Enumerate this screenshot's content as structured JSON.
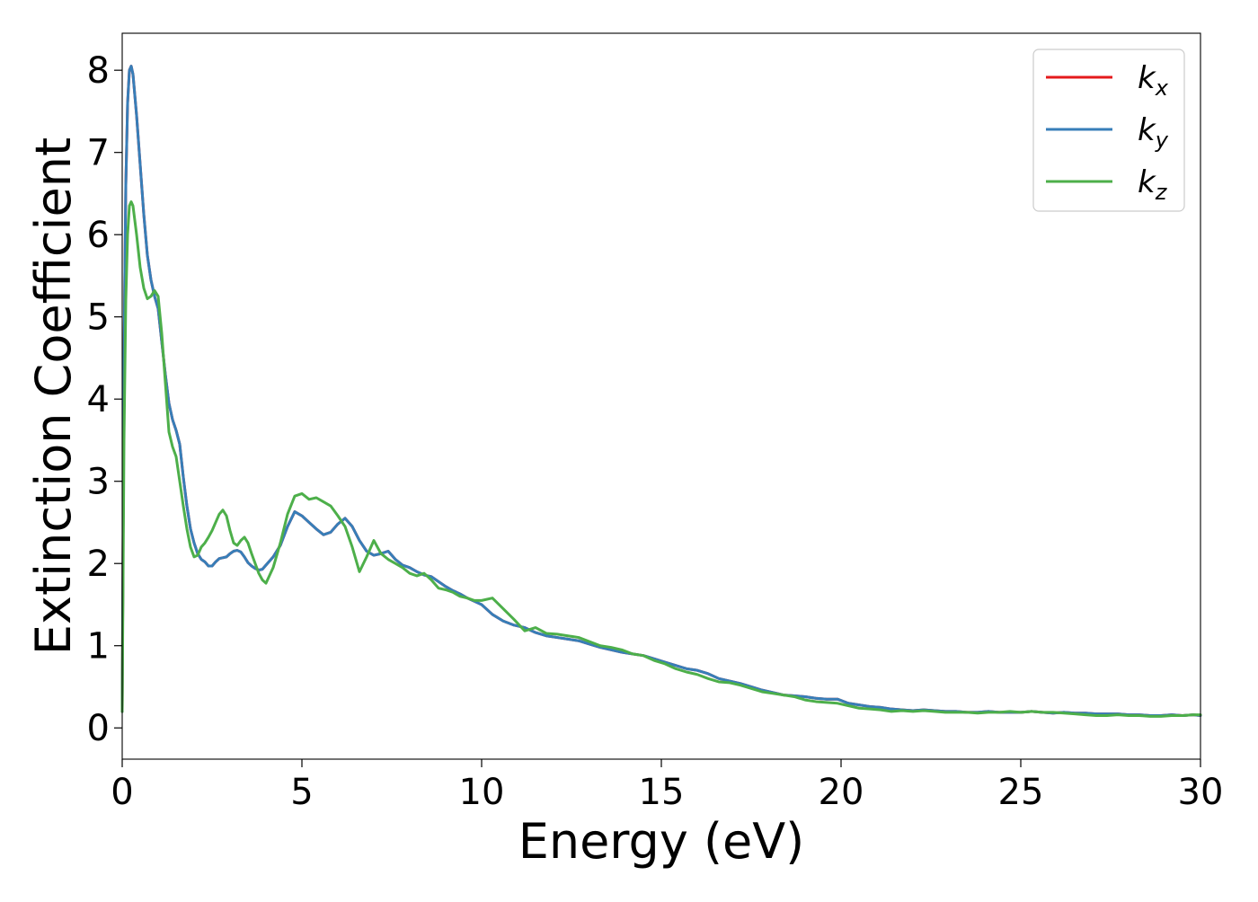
{
  "chart_data": {
    "type": "line",
    "title": "",
    "xlabel": "Energy (eV)",
    "ylabel": "Extinction Coefficient",
    "xlim": [
      0,
      30
    ],
    "ylim": [
      -0.38,
      8.45
    ],
    "xticks": [
      0,
      5,
      10,
      15,
      20,
      25,
      30
    ],
    "yticks": [
      0,
      1,
      2,
      3,
      4,
      5,
      6,
      7,
      8
    ],
    "grid": false,
    "legend_position": "top-right",
    "series": [
      {
        "name": "k_x",
        "legend_base": "k",
        "legend_sub": "x",
        "color": "#e41a1c",
        "x": [
          0,
          0.05,
          0.1,
          0.15,
          0.2,
          0.25,
          0.3,
          0.4,
          0.5,
          0.6,
          0.7,
          0.8,
          0.9,
          1.0,
          1.1,
          1.2,
          1.3,
          1.4,
          1.5,
          1.6,
          1.7,
          1.8,
          1.9,
          2.0,
          2.1,
          2.2,
          2.3,
          2.4,
          2.5,
          2.6,
          2.7,
          2.8,
          2.9,
          3.0,
          3.1,
          3.2,
          3.3,
          3.4,
          3.5,
          3.6,
          3.7,
          3.8,
          3.9,
          4.0,
          4.2,
          4.4,
          4.6,
          4.8,
          5.0,
          5.2,
          5.4,
          5.6,
          5.8,
          6.0,
          6.2,
          6.4,
          6.6,
          6.8,
          7.0,
          7.2,
          7.4,
          7.6,
          7.8,
          8.0,
          8.2,
          8.4,
          8.6,
          8.8,
          9.0,
          9.2,
          9.4,
          9.6,
          9.8,
          10.0,
          10.3,
          10.6,
          10.9,
          11.2,
          11.5,
          11.8,
          12.1,
          12.4,
          12.7,
          13.0,
          13.3,
          13.6,
          13.9,
          14.2,
          14.5,
          14.8,
          15.1,
          15.4,
          15.7,
          16.0,
          16.3,
          16.6,
          16.9,
          17.2,
          17.5,
          17.8,
          18.1,
          18.4,
          18.7,
          19.0,
          19.3,
          19.6,
          19.9,
          20.2,
          20.5,
          20.8,
          21.1,
          21.4,
          21.7,
          22.0,
          22.3,
          22.6,
          22.9,
          23.2,
          23.5,
          23.8,
          24.1,
          24.4,
          24.7,
          25.0,
          25.3,
          25.6,
          25.9,
          26.2,
          26.5,
          26.8,
          27.1,
          27.4,
          27.7,
          28.0,
          28.3,
          28.6,
          28.9,
          29.2,
          29.5,
          29.8,
          30.0
        ],
        "y": [
          0.2,
          4.5,
          6.6,
          7.6,
          8.0,
          8.05,
          7.95,
          7.45,
          6.85,
          6.25,
          5.75,
          5.45,
          5.25,
          5.1,
          4.7,
          4.3,
          3.95,
          3.75,
          3.62,
          3.45,
          3.05,
          2.7,
          2.42,
          2.25,
          2.12,
          2.05,
          2.02,
          1.97,
          1.97,
          2.02,
          2.06,
          2.07,
          2.08,
          2.12,
          2.15,
          2.16,
          2.14,
          2.08,
          2.01,
          1.97,
          1.94,
          1.92,
          1.93,
          1.98,
          2.08,
          2.22,
          2.45,
          2.63,
          2.58,
          2.5,
          2.42,
          2.35,
          2.38,
          2.48,
          2.55,
          2.45,
          2.28,
          2.15,
          2.1,
          2.12,
          2.15,
          2.05,
          1.98,
          1.95,
          1.9,
          1.86,
          1.84,
          1.78,
          1.72,
          1.67,
          1.63,
          1.58,
          1.54,
          1.5,
          1.38,
          1.3,
          1.25,
          1.22,
          1.16,
          1.12,
          1.1,
          1.08,
          1.06,
          1.02,
          0.98,
          0.95,
          0.92,
          0.9,
          0.88,
          0.84,
          0.8,
          0.76,
          0.72,
          0.7,
          0.66,
          0.6,
          0.57,
          0.54,
          0.5,
          0.46,
          0.43,
          0.4,
          0.39,
          0.38,
          0.36,
          0.35,
          0.35,
          0.3,
          0.28,
          0.26,
          0.25,
          0.23,
          0.22,
          0.21,
          0.22,
          0.21,
          0.2,
          0.2,
          0.19,
          0.19,
          0.2,
          0.19,
          0.19,
          0.19,
          0.2,
          0.19,
          0.18,
          0.19,
          0.18,
          0.18,
          0.17,
          0.17,
          0.17,
          0.16,
          0.16,
          0.15,
          0.15,
          0.16,
          0.15,
          0.16,
          0.15
        ]
      },
      {
        "name": "k_y",
        "legend_base": "k",
        "legend_sub": "y",
        "color": "#377eb8",
        "x": [
          0,
          0.05,
          0.1,
          0.15,
          0.2,
          0.25,
          0.3,
          0.4,
          0.5,
          0.6,
          0.7,
          0.8,
          0.9,
          1.0,
          1.1,
          1.2,
          1.3,
          1.4,
          1.5,
          1.6,
          1.7,
          1.8,
          1.9,
          2.0,
          2.1,
          2.2,
          2.3,
          2.4,
          2.5,
          2.6,
          2.7,
          2.8,
          2.9,
          3.0,
          3.1,
          3.2,
          3.3,
          3.4,
          3.5,
          3.6,
          3.7,
          3.8,
          3.9,
          4.0,
          4.2,
          4.4,
          4.6,
          4.8,
          5.0,
          5.2,
          5.4,
          5.6,
          5.8,
          6.0,
          6.2,
          6.4,
          6.6,
          6.8,
          7.0,
          7.2,
          7.4,
          7.6,
          7.8,
          8.0,
          8.2,
          8.4,
          8.6,
          8.8,
          9.0,
          9.2,
          9.4,
          9.6,
          9.8,
          10.0,
          10.3,
          10.6,
          10.9,
          11.2,
          11.5,
          11.8,
          12.1,
          12.4,
          12.7,
          13.0,
          13.3,
          13.6,
          13.9,
          14.2,
          14.5,
          14.8,
          15.1,
          15.4,
          15.7,
          16.0,
          16.3,
          16.6,
          16.9,
          17.2,
          17.5,
          17.8,
          18.1,
          18.4,
          18.7,
          19.0,
          19.3,
          19.6,
          19.9,
          20.2,
          20.5,
          20.8,
          21.1,
          21.4,
          21.7,
          22.0,
          22.3,
          22.6,
          22.9,
          23.2,
          23.5,
          23.8,
          24.1,
          24.4,
          24.7,
          25.0,
          25.3,
          25.6,
          25.9,
          26.2,
          26.5,
          26.8,
          27.1,
          27.4,
          27.7,
          28.0,
          28.3,
          28.6,
          28.9,
          29.2,
          29.5,
          29.8,
          30.0
        ],
        "y": [
          0.2,
          4.5,
          6.6,
          7.6,
          8.0,
          8.05,
          7.95,
          7.45,
          6.85,
          6.25,
          5.75,
          5.45,
          5.25,
          5.1,
          4.7,
          4.3,
          3.95,
          3.75,
          3.62,
          3.45,
          3.05,
          2.7,
          2.42,
          2.25,
          2.12,
          2.05,
          2.02,
          1.97,
          1.97,
          2.02,
          2.06,
          2.07,
          2.08,
          2.12,
          2.15,
          2.16,
          2.14,
          2.08,
          2.01,
          1.97,
          1.94,
          1.92,
          1.93,
          1.98,
          2.08,
          2.22,
          2.45,
          2.63,
          2.58,
          2.5,
          2.42,
          2.35,
          2.38,
          2.48,
          2.55,
          2.45,
          2.28,
          2.15,
          2.1,
          2.12,
          2.15,
          2.05,
          1.98,
          1.95,
          1.9,
          1.86,
          1.84,
          1.78,
          1.72,
          1.67,
          1.63,
          1.58,
          1.54,
          1.5,
          1.38,
          1.3,
          1.25,
          1.22,
          1.16,
          1.12,
          1.1,
          1.08,
          1.06,
          1.02,
          0.98,
          0.95,
          0.92,
          0.9,
          0.88,
          0.84,
          0.8,
          0.76,
          0.72,
          0.7,
          0.66,
          0.6,
          0.57,
          0.54,
          0.5,
          0.46,
          0.43,
          0.4,
          0.39,
          0.38,
          0.36,
          0.35,
          0.35,
          0.3,
          0.28,
          0.26,
          0.25,
          0.23,
          0.22,
          0.21,
          0.22,
          0.21,
          0.2,
          0.2,
          0.19,
          0.19,
          0.2,
          0.19,
          0.19,
          0.19,
          0.2,
          0.19,
          0.18,
          0.19,
          0.18,
          0.18,
          0.17,
          0.17,
          0.17,
          0.16,
          0.16,
          0.15,
          0.15,
          0.16,
          0.15,
          0.16,
          0.15
        ]
      },
      {
        "name": "k_z",
        "legend_base": "k",
        "legend_sub": "z",
        "color": "#4daf4a",
        "x": [
          0,
          0.05,
          0.1,
          0.15,
          0.2,
          0.25,
          0.3,
          0.4,
          0.5,
          0.6,
          0.7,
          0.8,
          0.9,
          1.0,
          1.1,
          1.2,
          1.3,
          1.4,
          1.5,
          1.6,
          1.7,
          1.8,
          1.9,
          2.0,
          2.1,
          2.2,
          2.3,
          2.4,
          2.5,
          2.6,
          2.7,
          2.8,
          2.9,
          3.0,
          3.1,
          3.2,
          3.3,
          3.4,
          3.5,
          3.6,
          3.7,
          3.8,
          3.9,
          4.0,
          4.2,
          4.4,
          4.6,
          4.8,
          5.0,
          5.2,
          5.4,
          5.6,
          5.8,
          6.0,
          6.2,
          6.4,
          6.6,
          6.8,
          7.0,
          7.2,
          7.4,
          7.6,
          7.8,
          8.0,
          8.2,
          8.4,
          8.6,
          8.8,
          9.0,
          9.2,
          9.4,
          9.6,
          9.8,
          10.0,
          10.3,
          10.6,
          10.9,
          11.2,
          11.5,
          11.8,
          12.1,
          12.4,
          12.7,
          13.0,
          13.3,
          13.6,
          13.9,
          14.2,
          14.5,
          14.8,
          15.1,
          15.4,
          15.7,
          16.0,
          16.3,
          16.6,
          16.9,
          17.2,
          17.5,
          17.8,
          18.1,
          18.4,
          18.7,
          19.0,
          19.3,
          19.6,
          19.9,
          20.2,
          20.5,
          20.8,
          21.1,
          21.4,
          21.7,
          22.0,
          22.3,
          22.6,
          22.9,
          23.2,
          23.5,
          23.8,
          24.1,
          24.4,
          24.7,
          25.0,
          25.3,
          25.6,
          25.9,
          26.2,
          26.5,
          26.8,
          27.1,
          27.4,
          27.7,
          28.0,
          28.3,
          28.6,
          28.9,
          29.2,
          29.5,
          29.8,
          30.0
        ],
        "y": [
          0.2,
          3.5,
          5.2,
          6.0,
          6.35,
          6.4,
          6.35,
          6.0,
          5.6,
          5.35,
          5.22,
          5.25,
          5.32,
          5.25,
          4.8,
          4.2,
          3.6,
          3.42,
          3.3,
          3.0,
          2.7,
          2.42,
          2.2,
          2.08,
          2.1,
          2.2,
          2.25,
          2.32,
          2.4,
          2.5,
          2.6,
          2.65,
          2.58,
          2.4,
          2.25,
          2.22,
          2.28,
          2.32,
          2.25,
          2.12,
          2.0,
          1.88,
          1.8,
          1.76,
          1.95,
          2.25,
          2.6,
          2.82,
          2.85,
          2.78,
          2.8,
          2.75,
          2.7,
          2.58,
          2.45,
          2.2,
          1.9,
          2.08,
          2.28,
          2.12,
          2.05,
          2.0,
          1.95,
          1.88,
          1.85,
          1.88,
          1.8,
          1.7,
          1.68,
          1.65,
          1.6,
          1.58,
          1.55,
          1.55,
          1.58,
          1.45,
          1.32,
          1.18,
          1.22,
          1.15,
          1.14,
          1.12,
          1.1,
          1.05,
          1.0,
          0.98,
          0.95,
          0.9,
          0.88,
          0.82,
          0.78,
          0.72,
          0.68,
          0.65,
          0.6,
          0.56,
          0.55,
          0.52,
          0.48,
          0.44,
          0.42,
          0.4,
          0.38,
          0.34,
          0.32,
          0.31,
          0.3,
          0.27,
          0.24,
          0.23,
          0.22,
          0.2,
          0.21,
          0.2,
          0.21,
          0.2,
          0.19,
          0.19,
          0.19,
          0.18,
          0.19,
          0.19,
          0.2,
          0.19,
          0.2,
          0.19,
          0.19,
          0.18,
          0.17,
          0.16,
          0.15,
          0.15,
          0.16,
          0.15,
          0.15,
          0.14,
          0.14,
          0.15,
          0.15,
          0.16,
          0.16
        ]
      }
    ]
  }
}
